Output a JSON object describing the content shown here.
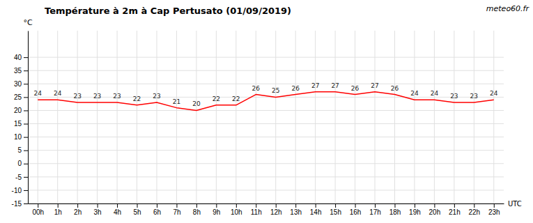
{
  "chart_data": {
    "type": "line",
    "title": "Température à 2m à Cap Pertusato (01/09/2019)",
    "xlabel": "UTC",
    "ylabel": "°C",
    "annotations": [
      "meteo60.fr"
    ],
    "x": [
      0,
      1,
      2,
      3,
      4,
      5,
      6,
      7,
      8,
      9,
      10,
      11,
      12,
      13,
      14,
      15,
      16,
      17,
      18,
      19,
      20,
      21,
      22,
      23
    ],
    "series": [
      {
        "name": "Température",
        "color": "#ff0000",
        "values": [
          24,
          24,
          23,
          23,
          23,
          22,
          23,
          21,
          20,
          22,
          22,
          26,
          25,
          26,
          27,
          27,
          26,
          27,
          26,
          24,
          24,
          23,
          23,
          24
        ]
      }
    ],
    "xlim": [
      -0.5,
      23.5
    ],
    "xticks": [
      {
        "value": 0,
        "label": "00h"
      },
      {
        "value": 1,
        "label": "1h"
      },
      {
        "value": 2,
        "label": "2h"
      },
      {
        "value": 3,
        "label": "3h"
      },
      {
        "value": 4,
        "label": "4h"
      },
      {
        "value": 5,
        "label": "5h"
      },
      {
        "value": 6,
        "label": "6h"
      },
      {
        "value": 7,
        "label": "7h"
      },
      {
        "value": 8,
        "label": "8h"
      },
      {
        "value": 9,
        "label": "9h"
      },
      {
        "value": 10,
        "label": "10h"
      },
      {
        "value": 11,
        "label": "11h"
      },
      {
        "value": 12,
        "label": "12h"
      },
      {
        "value": 13,
        "label": "13h"
      },
      {
        "value": 14,
        "label": "14h"
      },
      {
        "value": 15,
        "label": "15h"
      },
      {
        "value": 16,
        "label": "16h"
      },
      {
        "value": 17,
        "label": "17h"
      },
      {
        "value": 18,
        "label": "18h"
      },
      {
        "value": 19,
        "label": "19h"
      },
      {
        "value": 20,
        "label": "20h"
      },
      {
        "value": 21,
        "label": "21h"
      },
      {
        "value": 22,
        "label": "22h"
      },
      {
        "value": 23,
        "label": "23h"
      }
    ],
    "ylim": [
      -15,
      50
    ],
    "yticks": [
      -15,
      -10,
      -5,
      0,
      5,
      10,
      15,
      20,
      25,
      30,
      35,
      40
    ],
    "grid": true,
    "data_labels": true
  }
}
